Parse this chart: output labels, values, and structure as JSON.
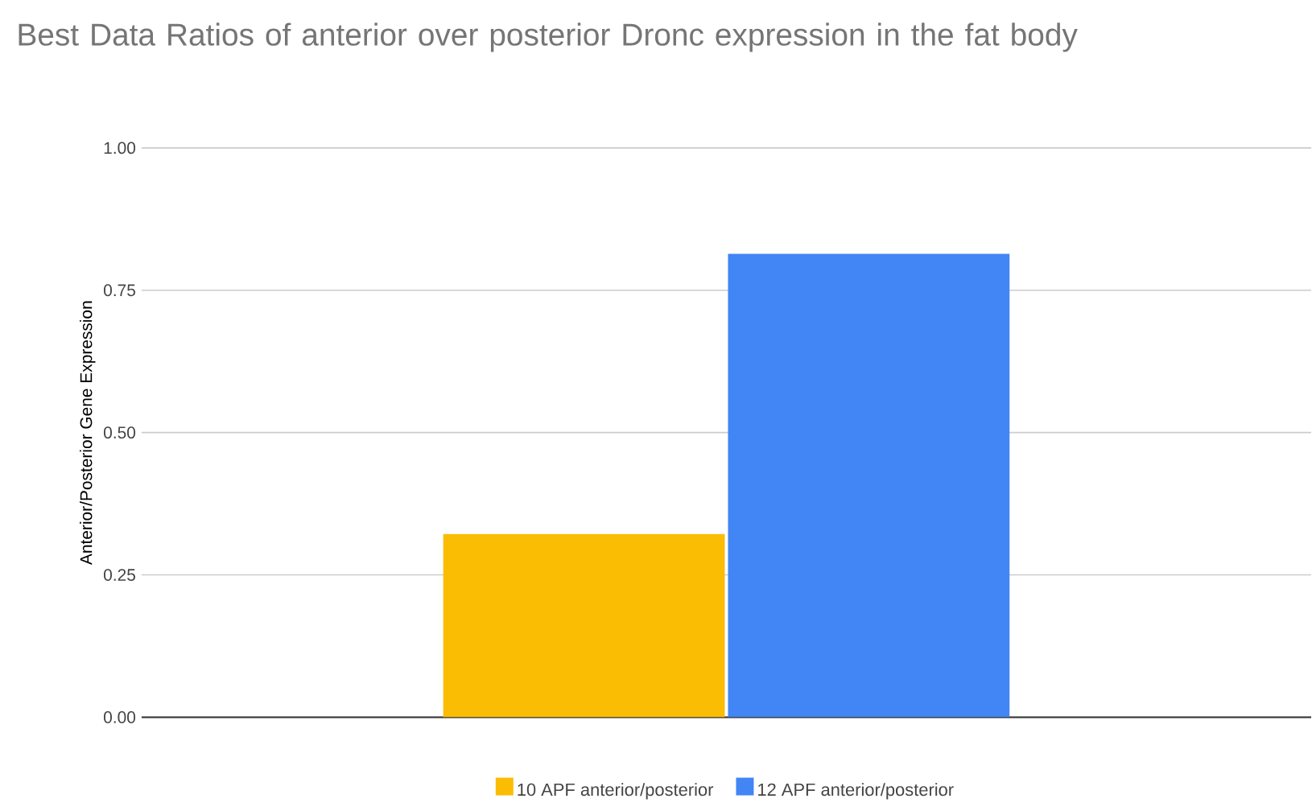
{
  "chart_data": {
    "type": "bar",
    "title": "Best Data Ratios of anterior over posterior Dronc expression in the fat body",
    "ylabel": "Anterior/Posterior Gene Expression",
    "categories": [
      null
    ],
    "series": [
      {
        "name": "10 APF anterior/posterior",
        "color": "#fbbc04",
        "values": [
          0.322
        ]
      },
      {
        "name": "12 APF anterior/posterior",
        "color": "#4285f4",
        "values": [
          0.814
        ]
      }
    ],
    "ylim": [
      0,
      1
    ],
    "yticks": [
      {
        "value": 0,
        "label": "0.00"
      },
      {
        "value": 0.25,
        "label": "0.25"
      },
      {
        "value": 0.5,
        "label": "0.50"
      },
      {
        "value": 0.75,
        "label": "0.75"
      },
      {
        "value": 1,
        "label": "1.00"
      }
    ],
    "grid": "y",
    "legend": "bottom"
  }
}
